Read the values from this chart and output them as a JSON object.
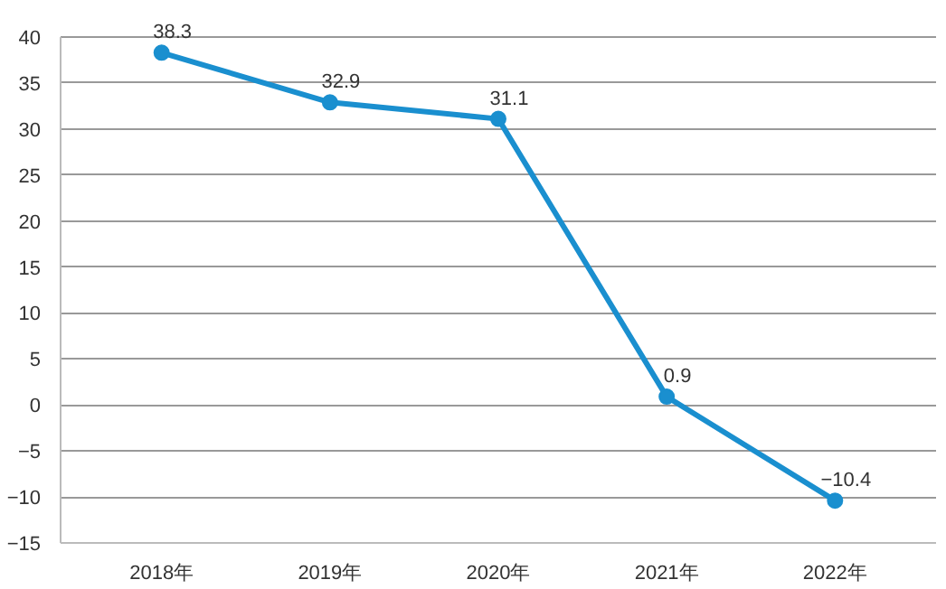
{
  "chart_data": {
    "type": "line",
    "categories": [
      "2018年",
      "2019年",
      "2020年",
      "2021年",
      "2022年"
    ],
    "series": [
      {
        "color": "#1a8fcf",
        "values": [
          38.3,
          32.9,
          31.1,
          0.9,
          -10.4
        ],
        "value_labels": [
          "38.3",
          "32.9",
          "31.1",
          "0.9",
          "−10.4"
        ]
      }
    ],
    "ylim": [
      -15,
      40
    ],
    "yticks": [
      {
        "value": -15,
        "label": "−15"
      },
      {
        "value": -10,
        "label": "−10"
      },
      {
        "value": -5,
        "label": "−5"
      },
      0,
      5,
      10,
      15,
      20,
      25,
      30,
      35,
      40
    ],
    "grid": "y",
    "marker": "circle",
    "line_style": "solid"
  }
}
